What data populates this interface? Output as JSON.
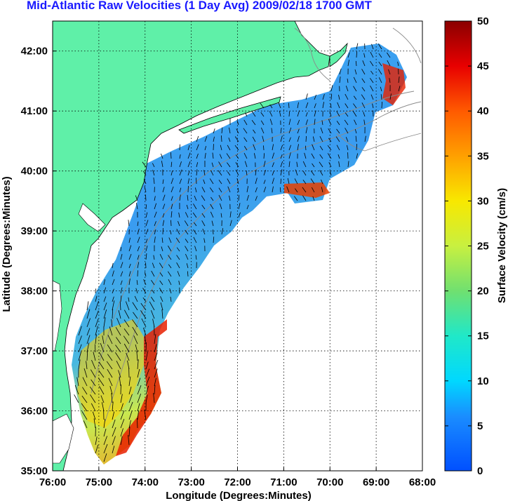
{
  "title": "Mid-Atlantic Raw Velocities (1 Day Avg) 2009/02/18 1700 GMT",
  "map": {
    "xlabel": "Longitude (Degrees:Minutes)",
    "ylabel": "Latitude (Degrees:Minutes)",
    "lon_ticks": [
      "76:00",
      "75:00",
      "74:00",
      "73:00",
      "72:00",
      "71:00",
      "70:00",
      "69:00",
      "68:00"
    ],
    "lat_ticks": [
      "42:00",
      "41:00",
      "40:00",
      "39:00",
      "38:00",
      "37:00",
      "36:00",
      "35:00"
    ],
    "lon_range": [
      -76,
      -68
    ],
    "lat_range": [
      35,
      42.5
    ],
    "land_color": "#5ff0a8",
    "grid": "dotted"
  },
  "colorbar": {
    "label": "Surface Velocity (cm/s)",
    "ticks": [
      "50",
      "45",
      "40",
      "35",
      "30",
      "25",
      "20",
      "15",
      "10",
      "5",
      "0"
    ],
    "range": [
      0,
      50
    ],
    "colormap": "jet"
  }
}
